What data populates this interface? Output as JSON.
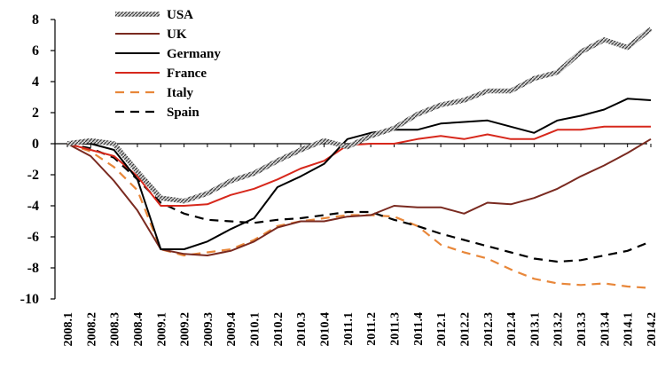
{
  "chart_data": {
    "type": "line",
    "title": "",
    "xlabel": "",
    "ylabel": "",
    "ylim": [
      -10,
      8
    ],
    "yticks": [
      8,
      6,
      4,
      2,
      0,
      -2,
      -4,
      -6,
      -8,
      -10
    ],
    "grid": false,
    "legend_position": "top-left",
    "categories": [
      "2008.1",
      "2008.2",
      "2008.3",
      "2008.4",
      "2009.1",
      "2009.2",
      "2009.3",
      "2009.4",
      "2010.1",
      "2010.2",
      "2010.3",
      "2010.4",
      "2011.1",
      "2011.2",
      "2011.3",
      "2011.4",
      "2012.1",
      "2012.2",
      "2012.3",
      "2012.4",
      "2013.1",
      "2013.2",
      "2013.3",
      "2013.4",
      "2014.1",
      "2014.2"
    ],
    "series": [
      {
        "name": "USA",
        "color": "#888888",
        "style": "thick-hatched",
        "values": [
          0.0,
          0.2,
          0.0,
          -1.8,
          -3.5,
          -3.7,
          -3.2,
          -2.4,
          -1.9,
          -1.1,
          -0.4,
          0.2,
          -0.2,
          0.5,
          1.0,
          1.9,
          2.5,
          2.8,
          3.4,
          3.4,
          4.2,
          4.6,
          5.9,
          6.7,
          6.2,
          7.4
        ]
      },
      {
        "name": "UK",
        "color": "#7a2a20",
        "style": "solid",
        "values": [
          0.0,
          -0.8,
          -2.4,
          -4.3,
          -6.8,
          -7.1,
          -7.2,
          -6.9,
          -6.3,
          -5.4,
          -5.0,
          -5.0,
          -4.7,
          -4.6,
          -4.0,
          -4.1,
          -4.1,
          -4.5,
          -3.8,
          -3.9,
          -3.5,
          -2.9,
          -2.1,
          -1.4,
          -0.6,
          0.3
        ]
      },
      {
        "name": "Germany",
        "color": "#000000",
        "style": "solid",
        "values": [
          0.0,
          0.0,
          -0.4,
          -2.3,
          -6.8,
          -6.8,
          -6.3,
          -5.5,
          -4.8,
          -2.8,
          -2.1,
          -1.3,
          0.3,
          0.7,
          0.9,
          0.9,
          1.3,
          1.4,
          1.5,
          1.1,
          0.7,
          1.5,
          1.8,
          2.2,
          2.9,
          2.8
        ]
      },
      {
        "name": "France",
        "color": "#d7281c",
        "style": "solid",
        "values": [
          0.0,
          -0.4,
          -0.8,
          -2.1,
          -4.0,
          -4.0,
          -3.9,
          -3.3,
          -2.9,
          -2.3,
          -1.6,
          -1.1,
          -0.1,
          0.0,
          0.0,
          0.3,
          0.5,
          0.3,
          0.6,
          0.3,
          0.3,
          0.9,
          0.9,
          1.1,
          1.1,
          1.1
        ]
      },
      {
        "name": "Italy",
        "color": "#e8873a",
        "style": "dashed",
        "values": [
          0.0,
          -0.5,
          -1.5,
          -3.0,
          -6.8,
          -7.2,
          -7.0,
          -6.8,
          -6.2,
          -5.3,
          -5.0,
          -4.8,
          -4.6,
          -4.6,
          -4.7,
          -5.3,
          -6.5,
          -7.0,
          -7.4,
          -8.1,
          -8.7,
          -9.0,
          -9.1,
          -9.0,
          -9.2,
          -9.3
        ]
      },
      {
        "name": "Spain",
        "color": "#000000",
        "style": "dashed",
        "values": [
          0.0,
          -0.3,
          -0.9,
          -2.3,
          -3.8,
          -4.5,
          -4.9,
          -5.0,
          -5.1,
          -4.9,
          -4.8,
          -4.6,
          -4.4,
          -4.4,
          -4.9,
          -5.3,
          -5.8,
          -6.2,
          -6.6,
          -7.0,
          -7.4,
          -7.6,
          -7.5,
          -7.2,
          -6.9,
          -6.3
        ]
      }
    ]
  }
}
